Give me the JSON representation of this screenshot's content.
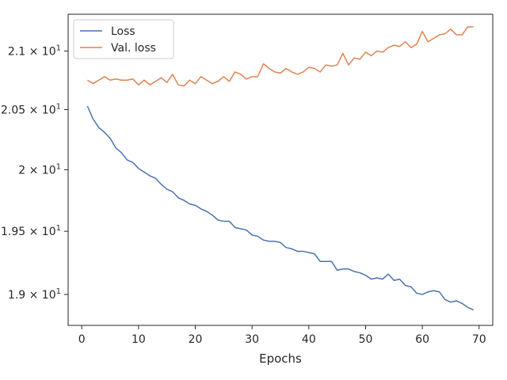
{
  "chart_data": {
    "type": "line",
    "title": "",
    "xlabel": "Epochs",
    "ylabel": "",
    "yscale": "log",
    "xlim": [
      -2.4,
      72.4
    ],
    "ylim": [
      18.76,
      21.32
    ],
    "grid": false,
    "legend_position": "top-left",
    "x_ticks": [
      0,
      10,
      20,
      30,
      40,
      50,
      60,
      70
    ],
    "x_tick_labels": [
      "0",
      "10",
      "20",
      "30",
      "40",
      "50",
      "60",
      "70"
    ],
    "y_ticks": [
      {
        "value": 19.0,
        "mantissa": "1.9",
        "exponent": "1"
      },
      {
        "value": 19.5,
        "mantissa": "1.95",
        "exponent": "1"
      },
      {
        "value": 20.0,
        "mantissa": "2",
        "exponent": "1"
      },
      {
        "value": 20.5,
        "mantissa": "2.05",
        "exponent": "1"
      },
      {
        "value": 21.0,
        "mantissa": "2.1",
        "exponent": "1"
      }
    ],
    "y_tick_times": "×",
    "y_tick_base": "10",
    "x": [
      1,
      2,
      3,
      4,
      5,
      6,
      7,
      8,
      9,
      10,
      11,
      12,
      13,
      14,
      15,
      16,
      17,
      18,
      19,
      20,
      21,
      22,
      23,
      24,
      25,
      26,
      27,
      28,
      29,
      30,
      31,
      32,
      33,
      34,
      35,
      36,
      37,
      38,
      39,
      40,
      41,
      42,
      43,
      44,
      45,
      46,
      47,
      48,
      49,
      50,
      51,
      52,
      53,
      54,
      55,
      56,
      57,
      58,
      59,
      60,
      61,
      62,
      63,
      64,
      65,
      66,
      67,
      68,
      69
    ],
    "series": [
      {
        "name": "Loss",
        "color": "#4c72b0",
        "values": [
          20.53,
          20.42,
          20.35,
          20.31,
          20.26,
          20.18,
          20.14,
          20.08,
          20.06,
          20.01,
          19.98,
          19.95,
          19.93,
          19.88,
          19.84,
          19.82,
          19.77,
          19.75,
          19.72,
          19.71,
          19.68,
          19.66,
          19.63,
          19.59,
          19.58,
          19.58,
          19.53,
          19.52,
          19.51,
          19.47,
          19.46,
          19.43,
          19.42,
          19.42,
          19.41,
          19.37,
          19.36,
          19.34,
          19.34,
          19.33,
          19.32,
          19.26,
          19.26,
          19.26,
          19.19,
          19.2,
          19.2,
          19.18,
          19.17,
          19.15,
          19.12,
          19.13,
          19.12,
          19.16,
          19.11,
          19.12,
          19.07,
          19.06,
          19.01,
          19.0,
          19.02,
          19.03,
          19.02,
          18.96,
          18.94,
          18.95,
          18.93,
          18.9,
          18.88
        ]
      },
      {
        "name": "Val. loss",
        "color": "#dd8452",
        "values": [
          20.75,
          20.72,
          20.75,
          20.78,
          20.75,
          20.76,
          20.75,
          20.75,
          20.76,
          20.71,
          20.75,
          20.71,
          20.74,
          20.77,
          20.73,
          20.8,
          20.71,
          20.7,
          20.75,
          20.72,
          20.78,
          20.75,
          20.72,
          20.74,
          20.78,
          20.74,
          20.82,
          20.8,
          20.76,
          20.78,
          20.78,
          20.89,
          20.85,
          20.82,
          20.81,
          20.85,
          20.82,
          20.8,
          20.82,
          20.86,
          20.85,
          20.82,
          20.88,
          20.87,
          20.88,
          20.98,
          20.88,
          20.94,
          20.93,
          20.99,
          20.96,
          21.0,
          20.99,
          21.03,
          21.05,
          21.04,
          21.08,
          21.03,
          21.06,
          21.17,
          21.08,
          21.11,
          21.14,
          21.15,
          21.19,
          21.14,
          21.14,
          21.21,
          21.21
        ]
      }
    ]
  }
}
